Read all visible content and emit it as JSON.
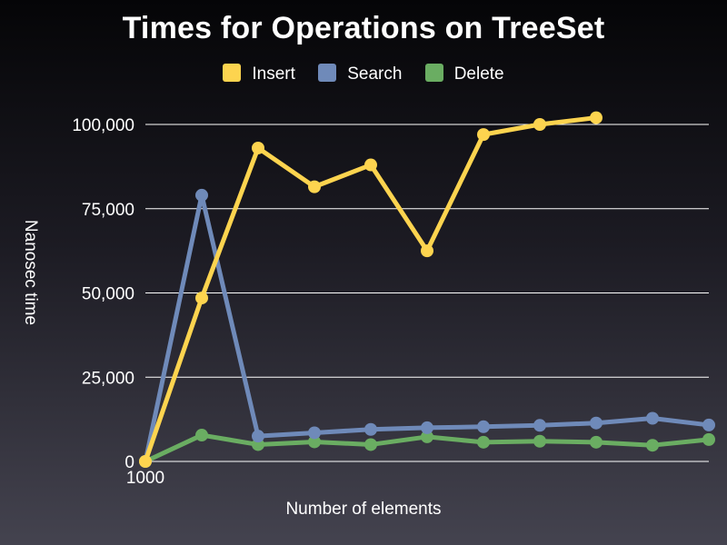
{
  "chart_data": {
    "type": "line",
    "title": "Times for Operations on TreeSet",
    "xlabel": "Number of elements",
    "ylabel": "Nanosec time",
    "ylim": [
      0,
      100000
    ],
    "yticks": [
      "0",
      "25,000",
      "50,000",
      "75,000",
      "100,000"
    ],
    "x_tick_labels": [
      "1000"
    ],
    "legend_position": "top",
    "grid": true,
    "series": [
      {
        "name": "Insert",
        "color": "#fdd44f",
        "values": [
          0,
          48500,
          93000,
          81500,
          88000,
          62500,
          97000,
          100000,
          102000
        ]
      },
      {
        "name": "Search",
        "color": "#6f8ab9",
        "values": [
          0,
          79000,
          7500,
          8500,
          9500,
          10000,
          10300,
          10700,
          11400,
          12800,
          10800
        ]
      },
      {
        "name": "Delete",
        "color": "#6aad62",
        "values": [
          0,
          7800,
          5000,
          5800,
          5000,
          7300,
          5700,
          6000,
          5700,
          4800,
          6500
        ]
      }
    ]
  }
}
